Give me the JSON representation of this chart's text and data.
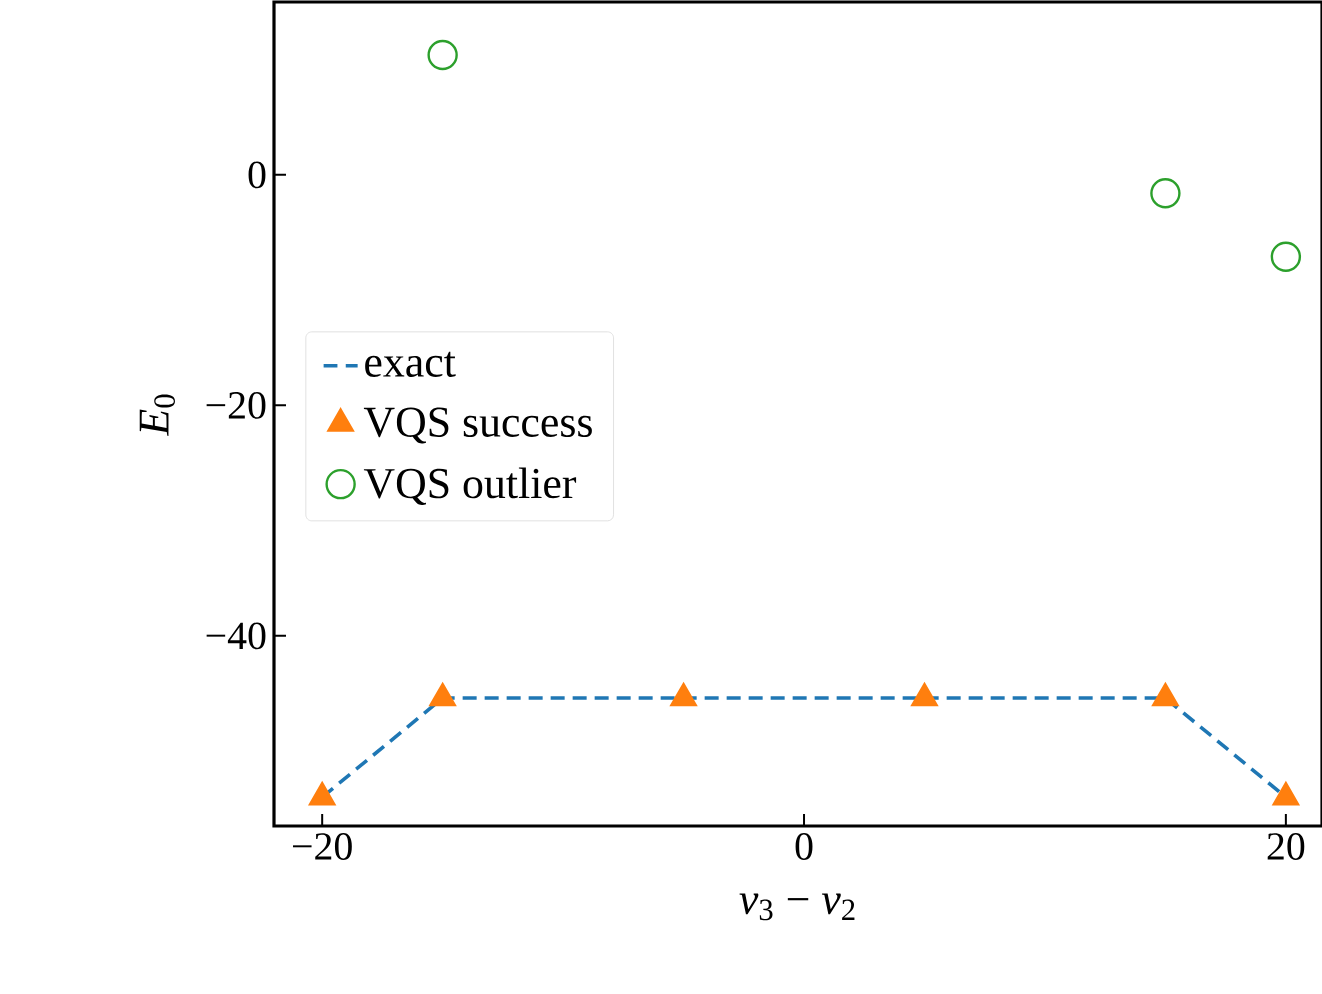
{
  "chart_data": {
    "type": "line",
    "xlabel": "*ν*$_{3}$ − *ν*$_{2}$",
    "ylabel": "*E*$_{0}$",
    "xlim": [
      -22,
      21.5
    ],
    "ylim": [
      -56.5,
      15
    ],
    "xticks": [
      {
        "value": -20,
        "label": "−20"
      },
      0,
      20
    ],
    "yticks": [
      {
        "value": -40,
        "label": "−40"
      },
      {
        "value": -20,
        "label": "−20"
      },
      0
    ],
    "legend": "left",
    "grid": false,
    "series": [
      {
        "name": "exact",
        "color": "#1f77b4",
        "line_style": "dashed",
        "marker": "none",
        "x": [
          -20,
          -15,
          15,
          20
        ],
        "values": [
          -54,
          -45.4,
          -45.4,
          -54
        ]
      },
      {
        "name": "VQS success",
        "type": "scatter",
        "color": "#ff7f0e",
        "marker": "triangle",
        "x": [
          -20,
          -15,
          -5,
          5,
          15,
          20
        ],
        "values": [
          -54,
          -45.4,
          -45.4,
          -45.4,
          -45.4,
          -54
        ]
      },
      {
        "name": "VQS outlier",
        "type": "scatter",
        "color": "#2ca02c",
        "marker": "circle",
        "x": [
          -15,
          15,
          20
        ],
        "values": [
          10.4,
          -1.6,
          -7.1
        ]
      }
    ]
  }
}
